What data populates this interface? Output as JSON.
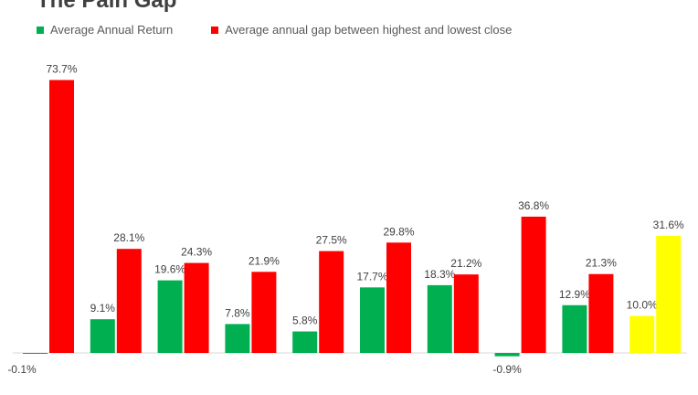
{
  "chart_data": {
    "type": "bar",
    "title": "The Pain Gap",
    "xlabel": "",
    "ylabel": "",
    "ylim": [
      -2,
      76
    ],
    "grid": false,
    "legend_position": "top-left",
    "series": [
      {
        "name": "Average Annual Return",
        "color": "#00b050",
        "values": [
          -0.1,
          9.1,
          19.6,
          7.8,
          5.8,
          17.7,
          18.3,
          -0.9,
          12.9,
          10.0
        ]
      },
      {
        "name": "Average annual gap between highest and lowest close",
        "color": "#ff0000",
        "values": [
          73.7,
          28.1,
          24.3,
          21.9,
          27.5,
          29.8,
          21.2,
          36.8,
          21.3,
          31.6
        ]
      }
    ],
    "highlight_color": "#ffff00",
    "highlight_group_index": 9,
    "data_labels": [
      [
        "-0.1%",
        "73.7%"
      ],
      [
        "9.1%",
        "28.1%"
      ],
      [
        "19.6%",
        "24.3%"
      ],
      [
        "7.8%",
        "21.9%"
      ],
      [
        "5.8%",
        "27.5%"
      ],
      [
        "17.7%",
        "29.8%"
      ],
      [
        "18.3%",
        "21.2%"
      ],
      [
        "-0.9%",
        "36.8%"
      ],
      [
        "12.9%",
        "21.3%"
      ],
      [
        "10.0%",
        "31.6%"
      ]
    ]
  }
}
